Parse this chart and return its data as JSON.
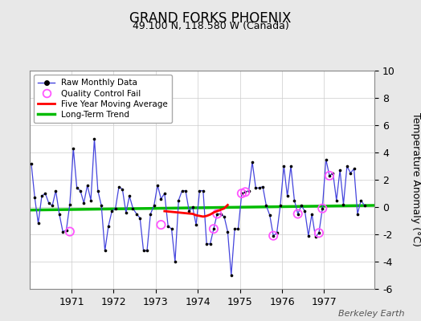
{
  "title": "GRAND FORKS PHOENIX",
  "subtitle": "49.100 N, 118.580 W (Canada)",
  "ylabel": "Temperature Anomaly (°C)",
  "watermark": "Berkeley Earth",
  "ylim": [
    -6,
    10
  ],
  "xlim": [
    1970.0,
    1978.2
  ],
  "xticks": [
    1971,
    1972,
    1973,
    1974,
    1975,
    1976,
    1977
  ],
  "yticks": [
    -6,
    -4,
    -2,
    0,
    2,
    4,
    6,
    8,
    10
  ],
  "bg_color": "#e8e8e8",
  "plot_bg_color": "#ffffff",
  "raw_color": "#4444dd",
  "raw_marker_color": "#000000",
  "qc_color": "#ff55ff",
  "mavg_color": "#ff0000",
  "trend_color": "#00bb00",
  "raw_x": [
    1970.042,
    1970.125,
    1970.208,
    1970.292,
    1970.375,
    1970.458,
    1970.542,
    1970.625,
    1970.708,
    1970.792,
    1970.875,
    1970.958,
    1971.042,
    1971.125,
    1971.208,
    1971.292,
    1971.375,
    1971.458,
    1971.542,
    1971.625,
    1971.708,
    1971.792,
    1971.875,
    1971.958,
    1972.042,
    1972.125,
    1972.208,
    1972.292,
    1972.375,
    1972.458,
    1972.542,
    1972.625,
    1972.708,
    1972.792,
    1972.875,
    1972.958,
    1973.042,
    1973.125,
    1973.208,
    1973.292,
    1973.375,
    1973.458,
    1973.542,
    1973.625,
    1973.708,
    1973.792,
    1973.875,
    1973.958,
    1974.042,
    1974.125,
    1974.208,
    1974.292,
    1974.375,
    1974.458,
    1974.542,
    1974.625,
    1974.708,
    1974.792,
    1974.875,
    1974.958,
    1975.042,
    1975.125,
    1975.208,
    1975.292,
    1975.375,
    1975.458,
    1975.542,
    1975.625,
    1975.708,
    1975.792,
    1975.875,
    1975.958,
    1976.042,
    1976.125,
    1976.208,
    1976.292,
    1976.375,
    1976.458,
    1976.542,
    1976.625,
    1976.708,
    1976.792,
    1976.875,
    1976.958,
    1977.042,
    1977.125,
    1977.208,
    1977.292,
    1977.375,
    1977.458,
    1977.542,
    1977.625,
    1977.708,
    1977.792,
    1977.875,
    1977.958
  ],
  "raw_y": [
    3.2,
    0.7,
    -1.2,
    0.8,
    1.0,
    0.3,
    0.1,
    1.2,
    -0.5,
    -1.8,
    -1.7,
    0.2,
    4.3,
    1.4,
    1.2,
    0.3,
    1.6,
    0.5,
    5.0,
    1.2,
    0.1,
    -3.2,
    -1.4,
    -0.3,
    -0.1,
    1.5,
    1.3,
    -0.4,
    0.8,
    -0.1,
    -0.5,
    -0.8,
    -3.2,
    -3.2,
    -0.5,
    0.1,
    1.6,
    0.6,
    1.0,
    -1.4,
    -1.6,
    -4.0,
    0.5,
    1.2,
    1.2,
    -0.3,
    0.0,
    -1.3,
    1.2,
    1.2,
    -2.7,
    -2.7,
    -1.6,
    -0.5,
    -0.5,
    -0.7,
    -1.8,
    -5.0,
    -1.6,
    -1.6,
    1.0,
    1.1,
    1.2,
    3.3,
    1.4,
    1.4,
    1.5,
    0.1,
    -0.6,
    -2.1,
    -1.9,
    0.1,
    3.0,
    0.8,
    3.0,
    0.5,
    -0.5,
    0.1,
    -0.3,
    -2.1,
    -0.5,
    -2.2,
    -1.9,
    -0.1,
    3.5,
    2.3,
    2.5,
    0.5,
    2.7,
    0.2,
    3.0,
    2.5,
    2.8,
    -0.5,
    0.5,
    0.1
  ],
  "qc_x": [
    1970.958,
    1973.125,
    1974.375,
    1974.458,
    1975.042,
    1975.125,
    1975.792,
    1976.375,
    1976.875,
    1976.958,
    1977.125
  ],
  "qc_y": [
    -1.8,
    -1.3,
    -1.6,
    -0.5,
    1.0,
    1.1,
    -2.1,
    -0.5,
    -1.9,
    -0.1,
    2.3
  ],
  "mavg_x": [
    1973.208,
    1973.375,
    1973.542,
    1973.708,
    1973.875,
    1973.958,
    1974.042,
    1974.125,
    1974.208,
    1974.292,
    1974.375,
    1974.458,
    1974.542,
    1974.625,
    1974.708
  ],
  "mavg_y": [
    -0.3,
    -0.35,
    -0.4,
    -0.45,
    -0.5,
    -0.6,
    -0.65,
    -0.7,
    -0.65,
    -0.55,
    -0.4,
    -0.3,
    -0.2,
    -0.1,
    0.15
  ],
  "trend_x": [
    1970.0,
    1978.2
  ],
  "trend_y": [
    -0.22,
    0.12
  ]
}
